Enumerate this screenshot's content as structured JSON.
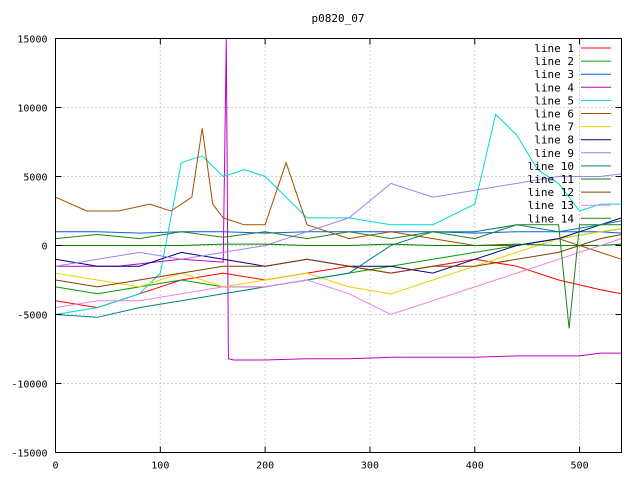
{
  "chart_data": {
    "type": "line",
    "title": "p0820_07",
    "xlabel": "",
    "ylabel": "",
    "xlim": [
      0,
      540
    ],
    "ylim": [
      -15000,
      15000
    ],
    "x_ticks": [
      0,
      100,
      200,
      300,
      400,
      500
    ],
    "y_ticks": [
      -15000,
      -10000,
      -5000,
      0,
      5000,
      10000,
      15000
    ],
    "grid": true,
    "legend_position": "top-right",
    "series": [
      {
        "name": "line 1",
        "color": "#ff0000",
        "x": [
          0,
          40,
          80,
          120,
          160,
          200,
          240,
          280,
          320,
          360,
          400,
          440,
          480,
          520,
          540
        ],
        "values": [
          -4000,
          -4500,
          -3500,
          -2500,
          -2000,
          -2500,
          -2000,
          -1500,
          -2000,
          -1500,
          -1000,
          -1500,
          -2500,
          -3200,
          -3500
        ]
      },
      {
        "name": "line 2",
        "color": "#00a000",
        "x": [
          0,
          40,
          80,
          120,
          160,
          200,
          240,
          280,
          320,
          360,
          400,
          440,
          480,
          520,
          540
        ],
        "values": [
          -3000,
          -3500,
          -3000,
          -2500,
          -3000,
          -3000,
          -2500,
          -2000,
          -1500,
          -1000,
          -500,
          0,
          500,
          1000,
          1200
        ]
      },
      {
        "name": "line 3",
        "color": "#0060e0",
        "x": [
          0,
          40,
          80,
          120,
          160,
          200,
          240,
          280,
          320,
          360,
          400,
          440,
          480,
          520,
          540
        ],
        "values": [
          1000,
          1000,
          900,
          1000,
          1000,
          900,
          1000,
          1000,
          1000,
          1000,
          900,
          1000,
          1000,
          1000,
          900
        ]
      },
      {
        "name": "line 4",
        "color": "#c000c0",
        "x": [
          0,
          60,
          120,
          160,
          163,
          165,
          170,
          200,
          240,
          280,
          320,
          360,
          400,
          440,
          480,
          500,
          520,
          540
        ],
        "values": [
          -1500,
          -1500,
          -1000,
          -1200,
          15000,
          -8200,
          -8300,
          -8300,
          -8200,
          -8200,
          -8100,
          -8100,
          -8100,
          -8000,
          -8000,
          -8000,
          -7800,
          -7800
        ]
      },
      {
        "name": "line 5",
        "color": "#00d8d8",
        "x": [
          0,
          40,
          80,
          100,
          120,
          140,
          160,
          180,
          200,
          240,
          280,
          320,
          360,
          400,
          420,
          440,
          460,
          480,
          500,
          520,
          540
        ],
        "values": [
          -5000,
          -4500,
          -3500,
          -2000,
          6000,
          6500,
          5000,
          5500,
          5000,
          2000,
          2000,
          1500,
          1500,
          3000,
          9500,
          8000,
          5500,
          4500,
          2500,
          3000,
          3000
        ]
      },
      {
        "name": "line 6",
        "color": "#a05000",
        "x": [
          0,
          30,
          60,
          90,
          110,
          130,
          140,
          150,
          160,
          180,
          200,
          220,
          240,
          280,
          320,
          360,
          400,
          440,
          480,
          520,
          540
        ],
        "values": [
          3500,
          2500,
          2500,
          3000,
          2500,
          3500,
          8500,
          3000,
          2000,
          1500,
          1500,
          6000,
          1500,
          500,
          1000,
          500,
          0,
          0,
          500,
          -500,
          -1000
        ]
      },
      {
        "name": "line 7",
        "color": "#f0d000",
        "x": [
          0,
          40,
          80,
          120,
          160,
          200,
          240,
          280,
          320,
          360,
          400,
          440,
          480,
          520,
          540
        ],
        "values": [
          -2000,
          -2500,
          -3000,
          -2000,
          -3000,
          -2500,
          -2000,
          -3000,
          -3500,
          -2500,
          -1500,
          -500,
          500,
          1000,
          1200
        ]
      },
      {
        "name": "line 8",
        "color": "#000080",
        "x": [
          0,
          40,
          80,
          120,
          160,
          200,
          240,
          280,
          320,
          360,
          400,
          440,
          480,
          520,
          540
        ],
        "values": [
          -1000,
          -1500,
          -1500,
          -500,
          -1000,
          -1500,
          -1000,
          -1500,
          -1500,
          -2000,
          -1000,
          0,
          500,
          1500,
          2000
        ]
      },
      {
        "name": "line 9",
        "color": "#a080f0",
        "x": [
          0,
          40,
          80,
          120,
          160,
          200,
          240,
          280,
          320,
          360,
          400,
          440,
          480,
          520,
          540
        ],
        "values": [
          -1500,
          -1000,
          -500,
          -1000,
          -500,
          0,
          1000,
          2000,
          4500,
          3500,
          4000,
          4500,
          5000,
          5000,
          5200
        ]
      },
      {
        "name": "line 10",
        "color": "#008080",
        "x": [
          0,
          40,
          80,
          120,
          160,
          200,
          240,
          280,
          320,
          360,
          400,
          440,
          480,
          520,
          540
        ],
        "values": [
          -5000,
          -5200,
          -4500,
          -4000,
          -3500,
          -3000,
          -2500,
          -2000,
          0,
          1000,
          1000,
          1500,
          1000,
          1500,
          1800
        ]
      },
      {
        "name": "line 11",
        "color": "#008000",
        "x": [
          0,
          40,
          80,
          120,
          160,
          200,
          240,
          280,
          320,
          360,
          400,
          440,
          480,
          520,
          540
        ],
        "values": [
          0,
          0,
          0,
          0,
          100,
          100,
          0,
          0,
          100,
          0,
          0,
          100,
          0,
          0,
          100
        ]
      },
      {
        "name": "line 12",
        "color": "#804000",
        "x": [
          0,
          40,
          80,
          120,
          160,
          200,
          240,
          280,
          320,
          360,
          400,
          440,
          480,
          520,
          540
        ],
        "values": [
          -2500,
          -3000,
          -2500,
          -2000,
          -1500,
          -1500,
          -1000,
          -1500,
          -2000,
          -1500,
          -1500,
          -1000,
          -500,
          500,
          800
        ]
      },
      {
        "name": "line 13",
        "color": "#f080f0",
        "x": [
          0,
          40,
          80,
          120,
          160,
          200,
          240,
          280,
          320,
          360,
          400,
          440,
          480,
          520,
          540
        ],
        "values": [
          -4500,
          -4000,
          -4000,
          -3500,
          -3000,
          -3000,
          -2500,
          -3500,
          -5000,
          -4000,
          -3000,
          -2000,
          -1000,
          0,
          500
        ]
      },
      {
        "name": "line 14",
        "color": "#208020",
        "x": [
          0,
          40,
          80,
          120,
          160,
          200,
          240,
          280,
          320,
          360,
          400,
          440,
          480,
          490,
          500,
          520,
          540
        ],
        "values": [
          500,
          800,
          500,
          1000,
          600,
          1000,
          500,
          1000,
          500,
          1000,
          500,
          1500,
          1500,
          -6000,
          1500,
          1500,
          1500
        ]
      }
    ]
  }
}
